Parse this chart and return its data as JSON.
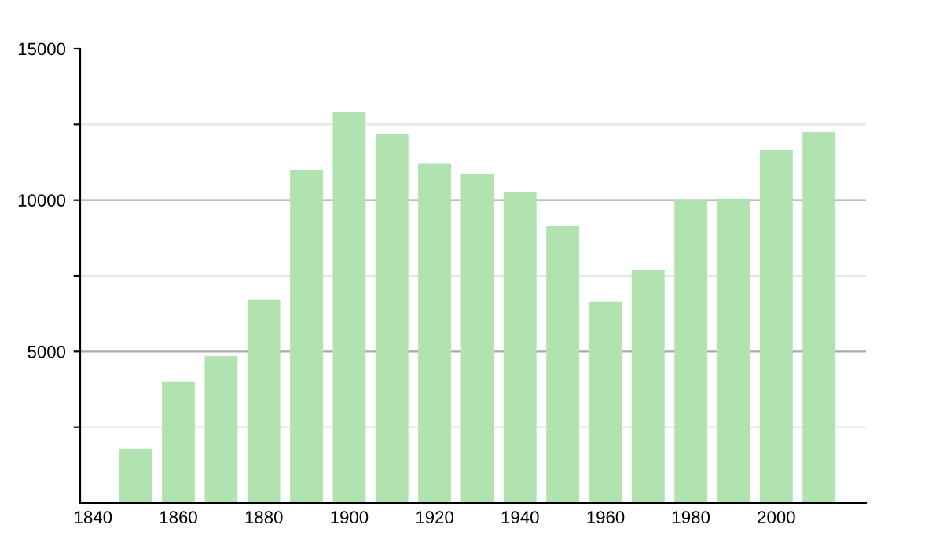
{
  "chart_data": {
    "type": "bar",
    "x": [
      1850,
      1860,
      1870,
      1880,
      1890,
      1900,
      1910,
      1920,
      1930,
      1940,
      1950,
      1960,
      1970,
      1980,
      1990,
      2000,
      2010
    ],
    "values": [
      1800,
      4000,
      4850,
      6700,
      11000,
      12900,
      12200,
      11200,
      10850,
      10250,
      9150,
      6650,
      7700,
      10000,
      10050,
      11650,
      12250
    ],
    "color": "#b0e3b0",
    "xlim": [
      1837,
      2021
    ],
    "xticks": [
      1840,
      1860,
      1880,
      1900,
      1920,
      1940,
      1960,
      1980,
      2000
    ],
    "ylim": [
      0,
      15000
    ],
    "yticks": [
      {
        "value": 2500,
        "label": null
      },
      5000,
      {
        "value": 7500,
        "label": null
      },
      10000,
      {
        "value": 12500,
        "label": null
      },
      15000
    ],
    "grid": "y"
  }
}
